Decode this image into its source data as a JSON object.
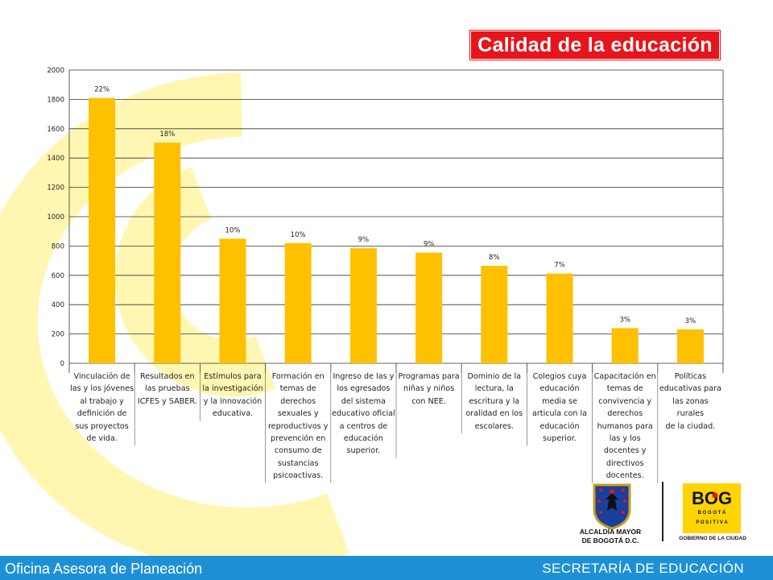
{
  "title": "Calidad de la educación",
  "chart_data": {
    "type": "bar",
    "title": "Calidad de la educación",
    "xlabel": "",
    "ylabel": "",
    "ylim": [
      0,
      2000
    ],
    "yticks": [
      0,
      200,
      400,
      600,
      800,
      1000,
      1200,
      1400,
      1600,
      1800,
      2000
    ],
    "grid": true,
    "bar_color": "#ffc000",
    "categories": [
      "Vinculación de las y los jóvenes al trabajo y definición de sus proyectos de vida.",
      "Resultados en las pruebas ICFES y SABER.",
      "Estímulos para la investigación y la innovación educativa.",
      "Formación en temas de derechos sexuales y reproductivos y prevención en consumo de sustancias psicoactivas.",
      "Ingreso de las y los egresados del sistema educativo oficial a centros de educación superior.",
      "Programas para niñas y niños con NEE.",
      "Dominio de la lectura, la escritura y la oralidad en los escolares.",
      "Colegios cuya educación media se articula con la educación superior.",
      "Capacitación en temas de convivencia y derechos humanos para las y los docentes y directivos docentes.",
      "Políticas educativas para las zonas rurales de la ciudad."
    ],
    "category_lines": [
      [
        "Vinculación de",
        "las y los jóvenes",
        "al trabajo y",
        "definición de",
        "sus proyectos",
        "de vida."
      ],
      [
        "Resultados en",
        "las pruebas",
        "ICFES y SABER."
      ],
      [
        "Estímulos para",
        "la investigación",
        "y la innovación",
        "educativa."
      ],
      [
        "Formación en",
        "temas de",
        "derechos",
        "sexuales y",
        "reproductivos y",
        "prevención en",
        "consumo de",
        "sustancias",
        "psicoactivas."
      ],
      [
        "Ingreso de las y",
        "los egresados",
        "del sistema",
        "educativo oficial",
        "a centros de",
        "educación",
        "superior."
      ],
      [
        "Programas para",
        "niñas y niños",
        "con NEE."
      ],
      [
        "Dominio de la",
        "lectura, la",
        "escritura y la",
        "oralidad en los",
        "escolares."
      ],
      [
        "Colegios cuya",
        "educación",
        "media se",
        "articula con la",
        "educación",
        "superior."
      ],
      [
        "Capacitación en",
        "temas de",
        "convivencia y",
        "derechos",
        "humanos para",
        "las y los",
        "docentes y",
        "directivos",
        "docentes."
      ],
      [
        "Políticas",
        "educativas para",
        "las zonas rurales",
        "de la ciudad."
      ]
    ],
    "values": [
      1810,
      1505,
      850,
      820,
      785,
      755,
      665,
      612,
      240,
      232
    ],
    "data_labels": [
      "22%",
      "18%",
      "10%",
      "10%",
      "9%",
      "9%",
      "8%",
      "7%",
      "3%",
      "3%"
    ]
  },
  "logos": {
    "alcaldia_line1": "ALCALDÍA MAYOR",
    "alcaldia_line2": "DE BOGOTÁ D.C.",
    "bog_text": "BOG",
    "bog_sub": "B O G O T Á",
    "positiva": "P O S I T I V A",
    "gobierno": "GOBIERNO DE LA CIUDAD"
  },
  "footer": {
    "left": "Oficina Asesora de Planeación",
    "right": "SECRETARÍA DE EDUCACIÓN"
  },
  "colors": {
    "title_bg": "#e8141b",
    "footer_bg": "#1e90d6",
    "bar": "#ffc000",
    "bg_arc": "#fff7b0"
  }
}
